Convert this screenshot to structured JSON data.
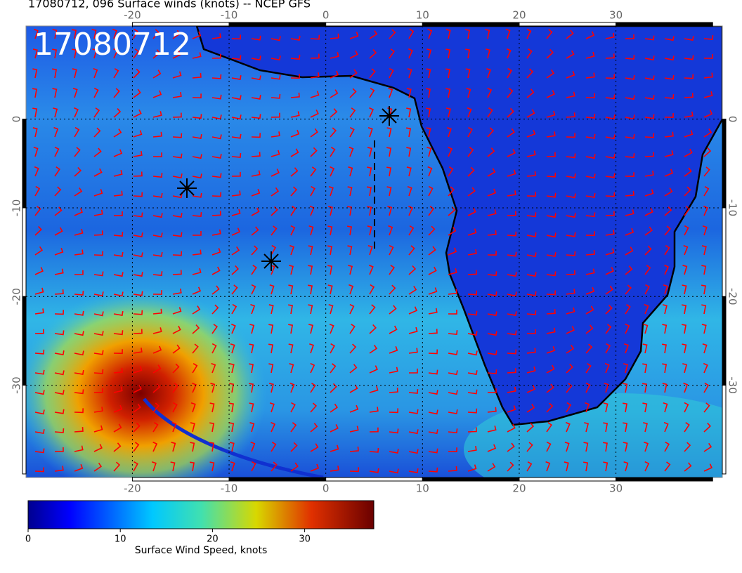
{
  "map": {
    "title": "17080712, 096 Surface winds (knots) -- NCEP GFS",
    "stamp": "17080712",
    "xlim": [
      -31,
      41
    ],
    "ylim": [
      -40.4,
      10.5
    ],
    "xticks": [
      -20,
      -10,
      0,
      10,
      20,
      30
    ],
    "yticks": [
      0,
      -10,
      -20,
      -30
    ],
    "colorbar": {
      "label": "Surface Wind Speed, knots",
      "lim": [
        0,
        37.5
      ],
      "ticks": [
        0,
        10,
        20,
        30
      ]
    }
  }
}
